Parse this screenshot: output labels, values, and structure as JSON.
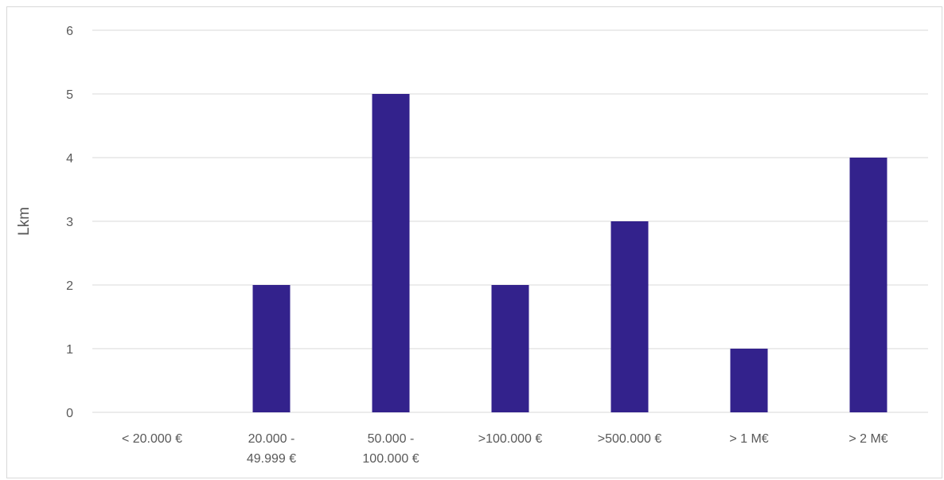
{
  "chart_data": {
    "type": "bar",
    "title": "",
    "xlabel": "",
    "ylabel": "Lkm",
    "categories": [
      [
        "< 20.000 €"
      ],
      [
        "20.000 -",
        "49.999 €"
      ],
      [
        "50.000 -",
        "100.000 €"
      ],
      [
        ">100.000 €"
      ],
      [
        ">500.000 €"
      ],
      [
        "> 1 M€"
      ],
      [
        "> 2 M€"
      ]
    ],
    "values": [
      0,
      2,
      5,
      2,
      3,
      1,
      4
    ],
    "ylim": [
      0,
      6
    ],
    "yticks": [
      0,
      1,
      2,
      3,
      4,
      5,
      6
    ],
    "grid": true,
    "legend": "none",
    "colors": {
      "bar": "#33228c",
      "grid": "#d9d9d9",
      "text": "#595959",
      "frame": "#d9d9d9"
    }
  }
}
